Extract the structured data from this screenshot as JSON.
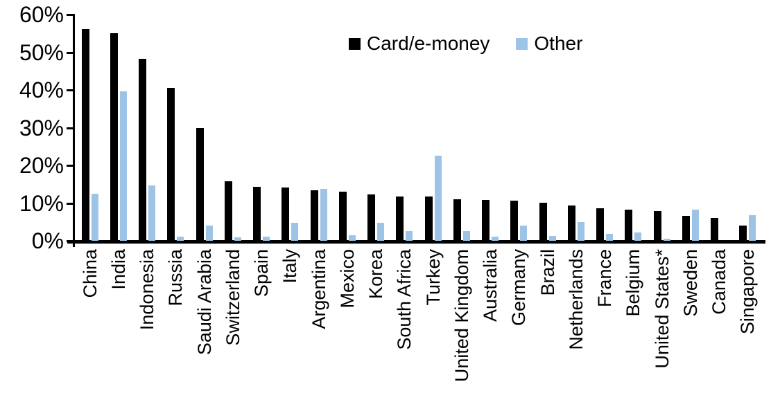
{
  "chart_data": {
    "type": "bar",
    "title": "",
    "xlabel": "",
    "ylabel": "",
    "ylim": [
      0,
      60
    ],
    "y_tick_values": [
      0,
      10,
      20,
      30,
      40,
      50,
      60
    ],
    "y_ticks": [
      "0%",
      "10%",
      "20%",
      "30%",
      "40%",
      "50%",
      "60%"
    ],
    "grid": false,
    "legend_position": "top-center",
    "categories": [
      "China",
      "India",
      "Indonesia",
      "Russia",
      "Saudi Arabia",
      "Switzerland",
      "Spain",
      "Italy",
      "Argentina",
      "Mexico",
      "Korea",
      "South Africa",
      "Turkey",
      "United Kingdom",
      "Australia",
      "Germany",
      "Brazil",
      "Netherlands",
      "France",
      "Belgium",
      "United States*",
      "Sweden",
      "Canada",
      "Singapore"
    ],
    "series": [
      {
        "name": "Card/e-money",
        "color": "#000000",
        "values": [
          56.2,
          55.0,
          48.3,
          40.5,
          29.9,
          15.7,
          14.3,
          14.2,
          13.4,
          13.0,
          12.3,
          11.8,
          11.7,
          11.1,
          10.8,
          10.7,
          10.1,
          9.4,
          8.7,
          8.2,
          7.9,
          6.7,
          6.1,
          4.0
        ]
      },
      {
        "name": "Other",
        "color": "#9DC3E6",
        "values": [
          12.4,
          39.7,
          14.6,
          1.2,
          4.0,
          0.9,
          1.1,
          4.7,
          13.8,
          1.5,
          4.8,
          2.5,
          22.6,
          2.5,
          1.2,
          4.0,
          1.3,
          5.0,
          1.8,
          2.2,
          0.5,
          8.2,
          0,
          6.8
        ]
      }
    ]
  },
  "colors": {
    "background": "#FFFFFF",
    "axis": "#000000",
    "card_emoney": "#000000",
    "other": "#9DC3E6"
  }
}
